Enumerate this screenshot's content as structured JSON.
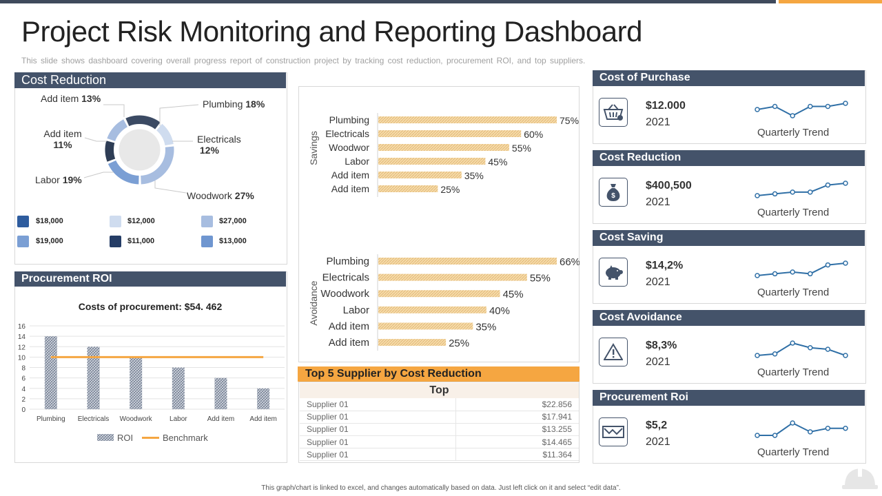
{
  "title": "Project Risk Monitoring and Reporting Dashboard",
  "subtitle": "This slide shows dashboard covering overall progress report of construction project by tracking cost reduction, procurement ROI, and top suppliers.",
  "colors": {
    "header": "#44536a",
    "accent": "#f5a641",
    "bar": "#f0c98a",
    "line": "#2f6fa6"
  },
  "cost_reduction": {
    "header": "Cost Reduction",
    "labels": [
      {
        "name": "Add item",
        "pct": "13%"
      },
      {
        "name": "Plumbing",
        "pct": "18%"
      },
      {
        "name": "Add item",
        "pct": "11%"
      },
      {
        "name": "Electricals",
        "pct": "12%"
      },
      {
        "name": "Labor",
        "pct": "19%"
      },
      {
        "name": "Woodwork",
        "pct": "27%"
      }
    ],
    "legend": [
      {
        "value": "$18,000",
        "color": "#2e5c9e"
      },
      {
        "value": "$12,000",
        "color": "#cfdcef"
      },
      {
        "value": "$27,000",
        "color": "#a7bde0"
      },
      {
        "value": "$19,000",
        "color": "#7b9fd4"
      },
      {
        "value": "$11,000",
        "color": "#253d66"
      },
      {
        "value": "$13,000",
        "color": "#6f96d0"
      }
    ]
  },
  "procurement_roi": {
    "header": "Procurement ROI",
    "chart_title": "Costs of procurement: $54. 462",
    "legend_roi": "ROI",
    "legend_benchmark": "Benchmark"
  },
  "supplier": {
    "header": "Top 5 Supplier by Cost Reduction",
    "col_header": "Top",
    "rows": [
      {
        "name": "Supplier 01",
        "value": "$22.856"
      },
      {
        "name": "Supplier 01",
        "value": "$17.941"
      },
      {
        "name": "Supplier 01",
        "value": "$13.255"
      },
      {
        "name": "Supplier 01",
        "value": "$14.465"
      },
      {
        "name": "Supplier 01",
        "value": "$11.364"
      }
    ]
  },
  "kpis": [
    {
      "title": "Cost of Purchase",
      "value": "$12.000",
      "year": "2021",
      "trend_label": "Quarterly Trend",
      "icon": "basket-icon",
      "trend": [
        3,
        4,
        1,
        4,
        4,
        5
      ]
    },
    {
      "title": "Cost Reduction",
      "value": "$400,500",
      "year": "2021",
      "trend_label": "Quarterly Trend",
      "icon": "money-bag-icon",
      "trend": [
        1,
        2,
        3,
        3,
        7,
        8
      ]
    },
    {
      "title": "Cost Saving",
      "value": "$14,2%",
      "year": "2021",
      "trend_label": "Quarterly Trend",
      "icon": "piggy-bank-icon",
      "trend": [
        1,
        2,
        3,
        2,
        7,
        8
      ]
    },
    {
      "title": "Cost Avoidance",
      "value": "$8,3%",
      "year": "2021",
      "trend_label": "Quarterly Trend",
      "icon": "warning-icon",
      "trend": [
        1,
        2,
        9,
        6,
        5,
        1
      ]
    },
    {
      "title": "Procurement Roi",
      "value": "$5,2",
      "year": "2021",
      "trend_label": "Quarterly Trend",
      "icon": "envelope-icon",
      "trend": [
        2,
        2,
        9,
        4,
        6,
        6
      ]
    }
  ],
  "footer": "This graph/chart is linked to excel, and changes automatically based on data. Just left click on it and select “edit data”.",
  "chart_data": [
    {
      "type": "pie",
      "title": "Cost Reduction",
      "categories": [
        "Add item",
        "Plumbing",
        "Add item",
        "Electricals",
        "Labor",
        "Woodwork"
      ],
      "values": [
        13,
        18,
        11,
        12,
        19,
        27
      ]
    },
    {
      "type": "bar",
      "title": "Costs of procurement: $54. 462",
      "categories": [
        "Plumbing",
        "Electricals",
        "Woodwork",
        "Labor",
        "Add item",
        "Add item"
      ],
      "series": [
        {
          "name": "ROI",
          "values": [
            14,
            12,
            10,
            8,
            6,
            4
          ]
        },
        {
          "name": "Benchmark",
          "values": [
            10,
            10,
            10,
            10,
            10,
            10
          ]
        }
      ],
      "ylim": [
        0,
        16
      ],
      "yticks": [
        0,
        2,
        4,
        6,
        8,
        10,
        12,
        14,
        16
      ]
    },
    {
      "type": "bar",
      "orientation": "horizontal",
      "ylabel": "Savings",
      "categories": [
        "Plumbing",
        "Electricals",
        "Woodwor",
        "Labor",
        "Add item",
        "Add item"
      ],
      "values": [
        75,
        60,
        55,
        45,
        35,
        25
      ],
      "value_labels": [
        "75%",
        "60%",
        "55%",
        "45%",
        "35%",
        "25%"
      ],
      "xlim": [
        0,
        75
      ]
    },
    {
      "type": "bar",
      "orientation": "horizontal",
      "ylabel": "Avoidance",
      "categories": [
        "Plumbing",
        "Electricals",
        "Woodwork",
        "Labor",
        "Add item",
        "Add item"
      ],
      "values": [
        66,
        55,
        45,
        40,
        35,
        25
      ],
      "value_labels": [
        "66%",
        "55%",
        "45%",
        "40%",
        "35%",
        "25%"
      ],
      "xlim": [
        0,
        66
      ]
    }
  ]
}
